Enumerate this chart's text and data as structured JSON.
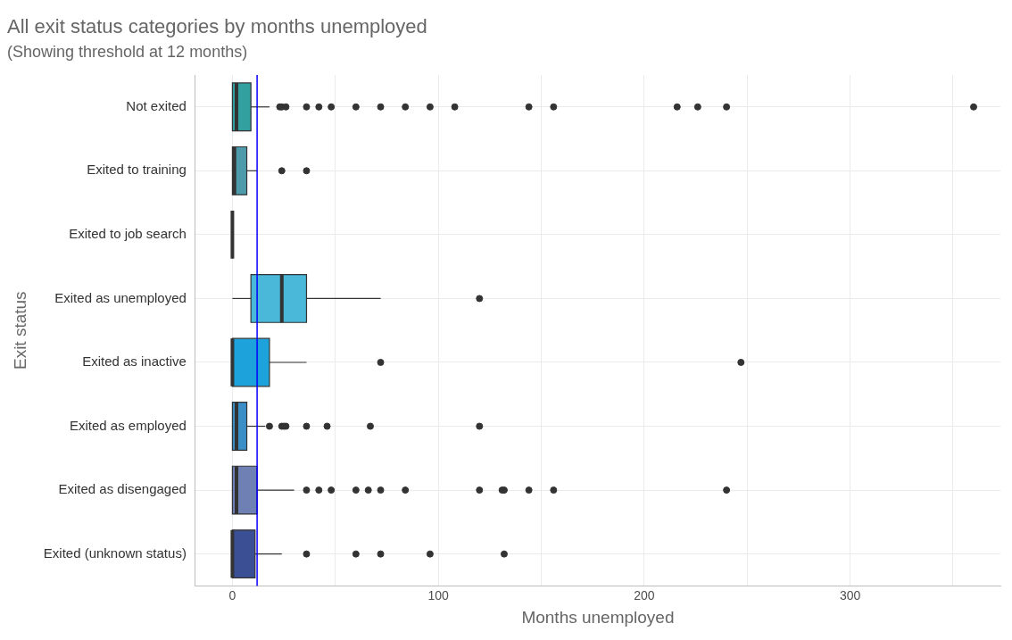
{
  "chart_data": {
    "type": "box",
    "title": "All exit status categories by months unemployed",
    "subtitle": "(Showing threshold at 12 months)",
    "xlabel": "Months unemployed",
    "ylabel": "Exit status",
    "orientation": "horizontal",
    "categories": [
      "Not exited",
      "Exited to training",
      "Exited to job search",
      "Exited as unemployed",
      "Exited as inactive",
      "Exited as employed",
      "Exited as disengaged",
      "Exited (unknown status)"
    ],
    "colors": [
      "#31a09e",
      "#4d9aaa",
      "#333333",
      "#4ab8d8",
      "#1ea2dc",
      "#3a8fc7",
      "#6f80b5",
      "#3b4f95"
    ],
    "boxes": [
      {
        "low": 0,
        "q1": 0,
        "median": 2,
        "q3": 9,
        "high": 18,
        "outliers": [
          23,
          24,
          26,
          36,
          42,
          48,
          60,
          72,
          84,
          96,
          108,
          144,
          156,
          216,
          226,
          240,
          360
        ]
      },
      {
        "low": 0,
        "q1": 0,
        "median": 1,
        "q3": 7,
        "high": 12,
        "outliers": [
          24,
          36
        ]
      },
      {
        "low": 0,
        "q1": 0,
        "median": 0,
        "q3": 0,
        "high": 0
      },
      {
        "low": 0,
        "q1": 9,
        "median": 24,
        "q3": 36,
        "high": 72,
        "outliers": [
          120
        ]
      },
      {
        "low": 0,
        "q1": 0,
        "median": 0,
        "q3": 18,
        "high": 36,
        "outliers": [
          72,
          247
        ]
      },
      {
        "low": 0,
        "q1": 0,
        "median": 2,
        "q3": 7,
        "high": 16,
        "outliers": [
          18,
          24,
          25,
          26,
          36,
          46,
          67,
          120
        ]
      },
      {
        "low": 0,
        "q1": 0,
        "median": 2,
        "q3": 12,
        "high": 30,
        "outliers": [
          36,
          42,
          48,
          60,
          66,
          72,
          84,
          120,
          131,
          132,
          144,
          156,
          240
        ]
      },
      {
        "low": 0,
        "q1": 0,
        "median": 0,
        "q3": 11,
        "high": 24,
        "outliers": [
          36,
          60,
          72,
          96,
          132
        ]
      }
    ],
    "xlim": [
      -18,
      373
    ],
    "xticks": [
      0,
      {
        "value": 50,
        "label": null
      },
      100,
      {
        "value": 150,
        "label": null
      },
      200,
      {
        "value": 250,
        "label": null
      },
      300,
      {
        "value": 350,
        "label": null
      }
    ],
    "grid": true,
    "ref_lines": [
      {
        "axis": "x",
        "value": 12,
        "color": "#0000ff"
      }
    ]
  }
}
